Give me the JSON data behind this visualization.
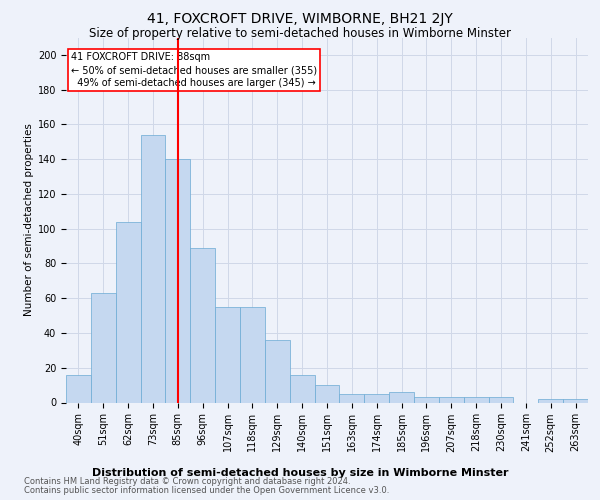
{
  "title": "41, FOXCROFT DRIVE, WIMBORNE, BH21 2JY",
  "subtitle": "Size of property relative to semi-detached houses in Wimborne Minster",
  "xlabel": "Distribution of semi-detached houses by size in Wimborne Minster",
  "ylabel": "Number of semi-detached properties",
  "footer_line1": "Contains HM Land Registry data © Crown copyright and database right 2024.",
  "footer_line2": "Contains public sector information licensed under the Open Government Licence v3.0.",
  "bar_values": [
    16,
    63,
    104,
    154,
    140,
    89,
    55,
    55,
    36,
    16,
    10,
    5,
    5,
    6,
    3,
    3,
    3,
    3,
    0,
    2,
    2
  ],
  "x_labels": [
    "40sqm",
    "51sqm",
    "62sqm",
    "73sqm",
    "85sqm",
    "96sqm",
    "107sqm",
    "118sqm",
    "129sqm",
    "140sqm",
    "151sqm",
    "163sqm",
    "174sqm",
    "185sqm",
    "196sqm",
    "207sqm",
    "218sqm",
    "230sqm",
    "241sqm",
    "252sqm",
    "263sqm"
  ],
  "bar_color": "#c5d8f0",
  "bar_edge_color": "#6aaad4",
  "bar_width": 1.0,
  "vline_x": 4.5,
  "vline_color": "red",
  "annotation_text": "41 FOXCROFT DRIVE: 88sqm\n← 50% of semi-detached houses are smaller (355)\n  49% of semi-detached houses are larger (345) →",
  "ylim": [
    0,
    210
  ],
  "yticks": [
    0,
    20,
    40,
    60,
    80,
    100,
    120,
    140,
    160,
    180,
    200
  ],
  "bg_color": "#eef2fa",
  "plot_bg_color": "#eef2fa",
  "grid_color": "#d0d8e8",
  "title_fontsize": 10,
  "subtitle_fontsize": 8.5,
  "xlabel_fontsize": 8,
  "ylabel_fontsize": 7.5,
  "tick_fontsize": 7,
  "annotation_fontsize": 7,
  "footer_fontsize": 6
}
